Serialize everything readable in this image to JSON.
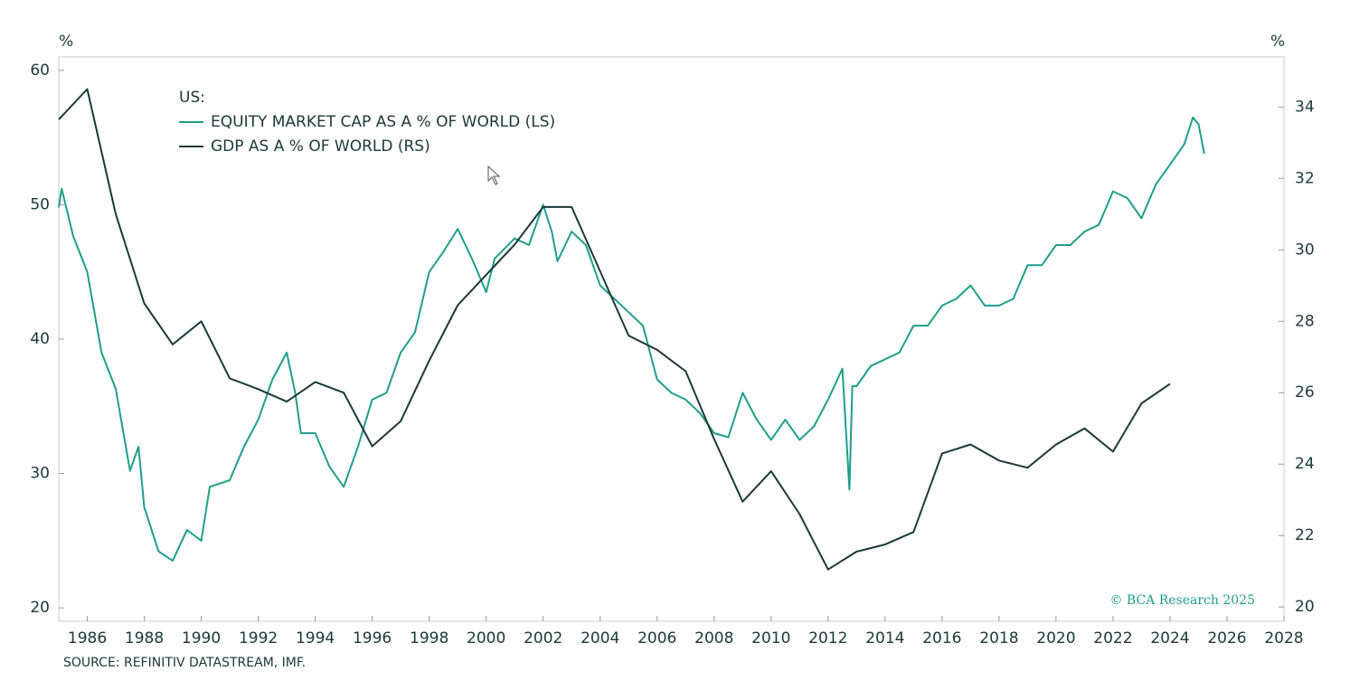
{
  "chart_data": {
    "type": "line",
    "legend_title": "US:",
    "y_unit": "%",
    "y2_unit": "%",
    "source": "SOURCE: REFINITIV DATASTREAM, IMF.",
    "copyright": "© BCA Research 2025",
    "xlim": [
      1985,
      2028
    ],
    "xticks": [
      1986,
      1988,
      1990,
      1992,
      1994,
      1996,
      1998,
      2000,
      2002,
      2004,
      2006,
      2008,
      2010,
      2012,
      2014,
      2016,
      2018,
      2020,
      2022,
      2024,
      2026,
      2028
    ],
    "ylim": [
      19,
      61
    ],
    "yticks": [
      20,
      30,
      40,
      50,
      60
    ],
    "y2lim": [
      19.6,
      35.4
    ],
    "y2ticks": [
      20,
      22,
      24,
      26,
      28,
      30,
      32,
      34
    ],
    "series": [
      {
        "name": "EQUITY MARKET CAP AS A % OF WORLD (LS)",
        "color": "#1f9e8b",
        "axis": "y",
        "x": [
          1985,
          1985.1,
          1985.5,
          1986,
          1986.5,
          1987,
          1987.5,
          1987.8,
          1988,
          1988.5,
          1989,
          1989.5,
          1990,
          1990.3,
          1991,
          1991.5,
          1992,
          1992.5,
          1993,
          1993.3,
          1993.5,
          1994,
          1994.5,
          1995,
          1995.5,
          1996,
          1996.5,
          1997,
          1997.5,
          1998,
          1998.5,
          1999,
          1999.5,
          2000,
          2000.3,
          2001,
          2001.5,
          2002,
          2002.3,
          2002.5,
          2003,
          2003.5,
          2004,
          2004.5,
          2005,
          2005.5,
          2006,
          2006.5,
          2007,
          2007.5,
          2008,
          2008.5,
          2009,
          2009.5,
          2010,
          2010.5,
          2011,
          2011.5,
          2012,
          2012.5,
          2012.75,
          2012.85,
          2013,
          2013.5,
          2014,
          2014.5,
          2015,
          2015.5,
          2016,
          2016.5,
          2017,
          2017.5,
          2018,
          2018.5,
          2019,
          2019.5,
          2020,
          2020.5,
          2021,
          2021.5,
          2022,
          2022.5,
          2023,
          2023.5,
          2024,
          2024.5,
          2024.8,
          2025,
          2025.2
        ],
        "values": [
          49.8,
          51.2,
          47.7,
          45,
          39,
          36.3,
          30.2,
          32,
          27.5,
          24.2,
          23.5,
          25.8,
          25,
          29,
          29.5,
          32,
          34,
          37,
          39,
          36,
          33,
          33,
          30.5,
          29,
          32,
          35.5,
          36,
          39,
          40.5,
          45,
          46.5,
          48.2,
          46,
          43.5,
          46,
          47.5,
          47,
          50,
          48,
          45.8,
          48,
          47,
          44,
          43,
          42,
          41,
          37,
          36,
          35.5,
          34.5,
          33,
          32.7,
          36,
          34,
          32.5,
          34,
          32.5,
          33.5,
          35.5,
          37.8,
          28.8,
          36.5,
          36.5,
          38,
          38.5,
          39,
          41,
          41,
          42.5,
          43,
          44,
          42.5,
          42.5,
          43,
          45.5,
          45.5,
          47,
          47,
          48,
          48.5,
          51,
          50.5,
          49,
          51.5,
          53,
          54.5,
          56.5,
          56,
          53.8
        ]
      },
      {
        "name": "GDP AS A % OF WORLD (RS)",
        "color": "#1c3838",
        "axis": "y2",
        "x": [
          1985,
          1986,
          1987,
          1988,
          1989,
          1990,
          1991,
          1992,
          1993,
          1994,
          1995,
          1996,
          1997,
          1998,
          1999,
          2000,
          2001,
          2002,
          2003,
          2004,
          2005,
          2006,
          2007,
          2008,
          2009,
          2010,
          2011,
          2012,
          2013,
          2014,
          2015,
          2016,
          2017,
          2018,
          2019,
          2020,
          2021,
          2022,
          2023,
          2024
        ],
        "values": [
          33.65,
          34.5,
          31,
          28.5,
          27.35,
          28,
          26.4,
          26.1,
          25.75,
          26.3,
          26,
          24.5,
          25.2,
          26.9,
          28.45,
          29.3,
          30.15,
          31.2,
          31.2,
          29.4,
          27.6,
          27.2,
          26.6,
          24.7,
          22.95,
          23.8,
          22.6,
          21.05,
          21.55,
          21.75,
          22.1,
          24.3,
          24.55,
          24.1,
          23.9,
          24.55,
          25,
          24.35,
          25.7,
          26.25
        ]
      }
    ]
  }
}
